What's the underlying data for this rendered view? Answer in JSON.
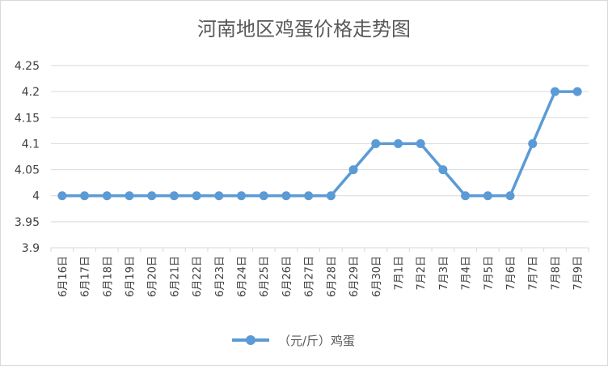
{
  "chart_data": {
    "type": "line",
    "title": "河南地区鸡蛋价格走势图",
    "categories": [
      "6月16日",
      "6月17日",
      "6月18日",
      "6月19日",
      "6月20日",
      "6月21日",
      "6月22日",
      "6月23日",
      "6月24日",
      "6月25日",
      "6月26日",
      "6月27日",
      "6月28日",
      "6月29日",
      "6月30日",
      "7月1日",
      "7月2日",
      "7月3日",
      "7月4日",
      "7月5日",
      "7月6日",
      "7月7日",
      "7月8日",
      "7月9日"
    ],
    "series": [
      {
        "name": "（元/斤）鸡蛋",
        "color": "#5b9bd5",
        "values": [
          4,
          4,
          4,
          4,
          4,
          4,
          4,
          4,
          4,
          4,
          4,
          4,
          4,
          4.05,
          4.1,
          4.1,
          4.1,
          4.05,
          4,
          4,
          4,
          4.1,
          4.2,
          4.2
        ]
      }
    ],
    "ylim": [
      3.9,
      4.25
    ],
    "yticks": [
      "3.9",
      "3.95",
      "4",
      "4.05",
      "4.1",
      "4.15",
      "4.2",
      "4.25"
    ],
    "grid": true,
    "legend": "bottom"
  }
}
